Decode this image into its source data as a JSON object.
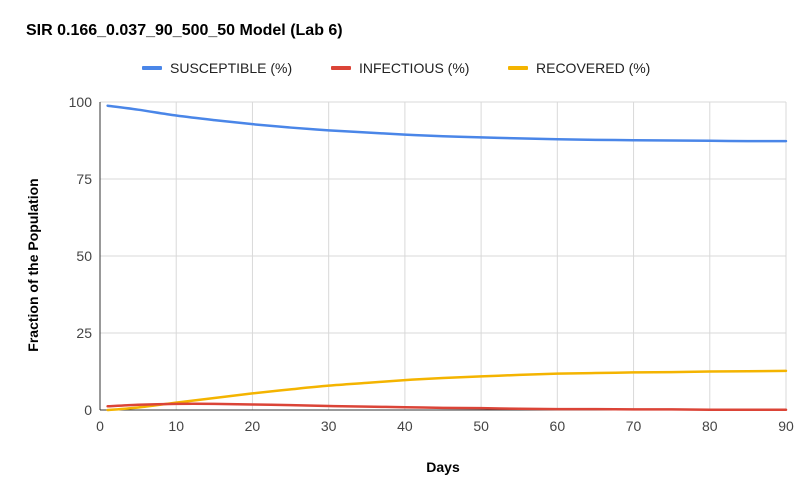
{
  "chart_data": {
    "type": "line",
    "title": "SIR 0.166_0.037_90_500_50 Model (Lab 6)",
    "xlabel": "Days",
    "ylabel": "Fraction of the Population",
    "xlim": [
      0,
      90
    ],
    "ylim": [
      0,
      100
    ],
    "xticks": [
      "0",
      "10",
      "20",
      "30",
      "40",
      "50",
      "60",
      "70",
      "80",
      "90"
    ],
    "yticks": [
      "0",
      "25",
      "50",
      "75",
      "100"
    ],
    "grid": true,
    "legend_position": "top",
    "x": [
      1,
      5,
      10,
      15,
      20,
      25,
      30,
      35,
      40,
      45,
      50,
      55,
      60,
      65,
      70,
      75,
      80,
      85,
      90
    ],
    "series": [
      {
        "name": "SUSCEPTIBLE (%)",
        "color": "#4a86e8",
        "values": [
          98.8,
          97.5,
          95.6,
          94.1,
          92.8,
          91.7,
          90.8,
          90.1,
          89.4,
          88.9,
          88.5,
          88.2,
          87.9,
          87.7,
          87.6,
          87.5,
          87.4,
          87.3,
          87.3
        ]
      },
      {
        "name": "INFECTIOUS (%)",
        "color": "#db4437",
        "values": [
          1.2,
          1.7,
          2.0,
          2.0,
          1.8,
          1.6,
          1.3,
          1.1,
          0.9,
          0.7,
          0.6,
          0.4,
          0.3,
          0.3,
          0.2,
          0.2,
          0.1,
          0.1,
          0.1
        ]
      },
      {
        "name": "RECOVERED (%)",
        "color": "#f4b400",
        "values": [
          0.0,
          0.8,
          2.4,
          3.9,
          5.4,
          6.7,
          7.9,
          8.8,
          9.7,
          10.4,
          10.9,
          11.4,
          11.8,
          12.0,
          12.2,
          12.3,
          12.5,
          12.6,
          12.7
        ]
      }
    ]
  }
}
